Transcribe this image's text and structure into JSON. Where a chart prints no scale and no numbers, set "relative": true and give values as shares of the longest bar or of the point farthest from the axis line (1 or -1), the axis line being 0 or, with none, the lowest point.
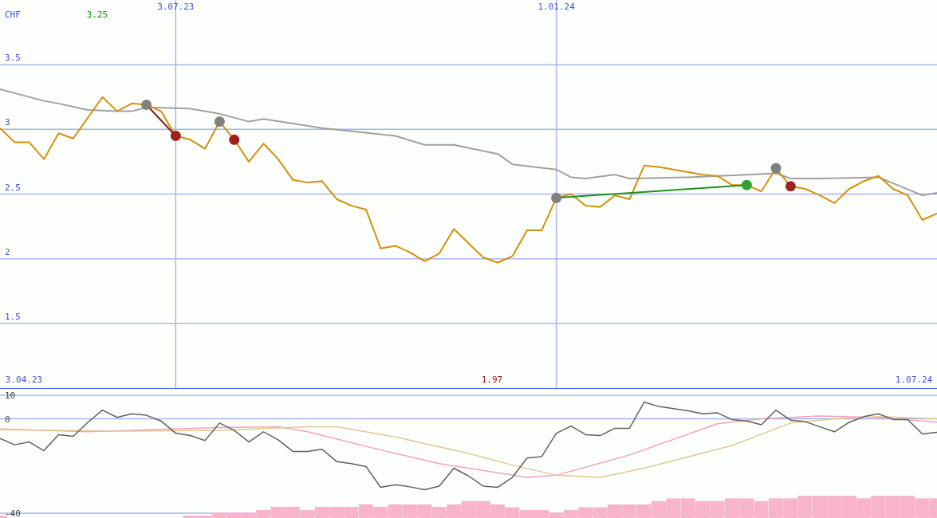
{
  "chart_data": [
    {
      "type": "line",
      "ylabel": "CHF",
      "annotations": [
        "3.25",
        "1.97",
        "3.04.23",
        "1.07.24"
      ],
      "xlim": [
        "2023-04-10",
        "2024-07-01"
      ],
      "xticks": [
        {
          "value": "2023-07-03",
          "label": "3.07.23"
        },
        {
          "value": "2024-01-01",
          "label": "1.01.24"
        }
      ],
      "ylim": [
        1,
        4
      ],
      "yticks": [
        1.5,
        2,
        2.5,
        3,
        3.5
      ],
      "grid": true,
      "legend": false,
      "x": [
        "2023-04-10",
        "2023-04-17",
        "2023-04-24",
        "2023-05-01",
        "2023-05-08",
        "2023-05-15",
        "2023-05-22",
        "2023-05-29",
        "2023-06-05",
        "2023-06-12",
        "2023-06-19",
        "2023-06-26",
        "2023-07-03",
        "2023-07-10",
        "2023-07-17",
        "2023-07-24",
        "2023-07-31",
        "2023-08-07",
        "2023-08-14",
        "2023-08-21",
        "2023-08-28",
        "2023-09-04",
        "2023-09-11",
        "2023-09-18",
        "2023-09-25",
        "2023-10-02",
        "2023-10-09",
        "2023-10-16",
        "2023-10-23",
        "2023-10-30",
        "2023-11-06",
        "2023-11-13",
        "2023-11-20",
        "2023-11-27",
        "2023-12-04",
        "2023-12-11",
        "2023-12-18",
        "2023-12-25",
        "2024-01-01",
        "2024-01-08",
        "2024-01-15",
        "2024-01-22",
        "2024-01-29",
        "2024-02-05",
        "2024-02-12",
        "2024-02-19",
        "2024-02-26",
        "2024-03-04",
        "2024-03-11",
        "2024-03-18",
        "2024-03-25",
        "2024-04-01",
        "2024-04-08",
        "2024-04-15",
        "2024-04-22",
        "2024-04-29",
        "2024-05-06",
        "2024-05-13",
        "2024-05-20",
        "2024-05-27",
        "2024-06-03",
        "2024-06-10",
        "2024-06-17",
        "2024-06-24",
        "2024-07-01"
      ],
      "series": [
        {
          "type": "line",
          "color": "#a0a0a0",
          "x": [
            "2023-04-10",
            "2023-05-01",
            "2023-05-08",
            "2023-05-22",
            "2023-06-05",
            "2023-06-12",
            "2023-06-19",
            "2023-07-10",
            "2023-07-24",
            "2023-08-07",
            "2023-08-14",
            "2023-09-11",
            "2023-10-16",
            "2023-10-30",
            "2023-11-13",
            "2023-12-04",
            "2023-12-11",
            "2024-01-01",
            "2024-01-08",
            "2024-01-15",
            "2024-01-29",
            "2024-02-05",
            "2024-03-04",
            "2024-04-01",
            "2024-04-15",
            "2024-04-22",
            "2024-05-06",
            "2024-06-03",
            "2024-06-24",
            "2024-07-01"
          ],
          "values": [
            3.31,
            3.22,
            3.2,
            3.15,
            3.14,
            3.14,
            3.17,
            3.16,
            3.12,
            3.06,
            3.08,
            3.01,
            2.95,
            2.88,
            2.88,
            2.81,
            2.73,
            2.69,
            2.63,
            2.62,
            2.65,
            2.62,
            2.63,
            2.65,
            2.66,
            2.62,
            2.62,
            2.63,
            2.49,
            2.51
          ]
        },
        {
          "type": "line",
          "color": "#d4900a",
          "values": [
            3.01,
            2.9,
            2.9,
            2.77,
            2.97,
            2.93,
            3.09,
            3.25,
            3.14,
            3.2,
            3.19,
            3.14,
            2.95,
            2.92,
            2.85,
            3.06,
            2.92,
            2.75,
            2.89,
            2.77,
            2.61,
            2.59,
            2.6,
            2.46,
            2.41,
            2.38,
            2.08,
            2.1,
            2.05,
            1.98,
            2.04,
            2.23,
            2.12,
            2.01,
            1.97,
            2.02,
            2.22,
            2.22,
            2.47,
            2.5,
            2.41,
            2.4,
            2.49,
            2.46,
            2.72,
            2.71,
            2.69,
            2.67,
            2.65,
            2.64,
            2.57,
            2.57,
            2.52,
            2.7,
            2.56,
            2.54,
            2.49,
            2.43,
            2.54,
            2.6,
            2.64,
            2.54,
            2.49,
            2.3,
            2.35
          ]
        },
        {
          "type": "line",
          "color": "#8b1a1a",
          "x": [
            "2023-06-19",
            "2023-07-03"
          ],
          "values": [
            3.19,
            2.95
          ]
        },
        {
          "type": "line",
          "color": "#209020",
          "x": [
            "2024-01-01",
            "2024-04-01"
          ],
          "values": [
            2.47,
            2.57
          ]
        },
        {
          "type": "scatter",
          "marker": "circle",
          "color": "#808080",
          "x": [
            "2023-06-19",
            "2023-07-24",
            "2024-01-01",
            "2024-04-15"
          ],
          "values": [
            3.19,
            3.06,
            2.47,
            2.7
          ]
        },
        {
          "type": "scatter",
          "marker": "circle",
          "color": "#a02020",
          "x": [
            "2023-07-03",
            "2023-07-31",
            "2024-04-22"
          ],
          "values": [
            2.95,
            2.92,
            2.56
          ]
        },
        {
          "type": "scatter",
          "marker": "circle",
          "color": "#30a030",
          "x": [
            "2024-04-01"
          ],
          "values": [
            2.57
          ]
        }
      ]
    },
    {
      "type": "line",
      "xlim": [
        "2023-04-10",
        "2024-07-01"
      ],
      "xticks": [
        {
          "value": "2023-07-03",
          "label": null
        },
        {
          "value": "2024-01-01",
          "label": null
        }
      ],
      "ylim": [
        -42,
        13
      ],
      "yticks": [
        -40,
        0,
        10
      ],
      "grid": true,
      "legend": false,
      "tick_labels": "y",
      "x": [
        "2023-04-10",
        "2023-04-17",
        "2023-04-24",
        "2023-05-01",
        "2023-05-08",
        "2023-05-15",
        "2023-05-22",
        "2023-05-29",
        "2023-06-05",
        "2023-06-12",
        "2023-06-19",
        "2023-06-26",
        "2023-07-03",
        "2023-07-10",
        "2023-07-17",
        "2023-07-24",
        "2023-07-31",
        "2023-08-07",
        "2023-08-14",
        "2023-08-21",
        "2023-08-28",
        "2023-09-04",
        "2023-09-11",
        "2023-09-18",
        "2023-09-25",
        "2023-10-02",
        "2023-10-09",
        "2023-10-16",
        "2023-10-23",
        "2023-10-30",
        "2023-11-06",
        "2023-11-13",
        "2023-11-20",
        "2023-11-27",
        "2023-12-04",
        "2023-12-11",
        "2023-12-18",
        "2023-12-25",
        "2024-01-01",
        "2024-01-08",
        "2024-01-15",
        "2024-01-22",
        "2024-01-29",
        "2024-02-05",
        "2024-02-12",
        "2024-02-19",
        "2024-02-26",
        "2024-03-04",
        "2024-03-11",
        "2024-03-18",
        "2024-03-25",
        "2024-04-01",
        "2024-04-08",
        "2024-04-15",
        "2024-04-22",
        "2024-04-29",
        "2024-05-06",
        "2024-05-13",
        "2024-05-20",
        "2024-05-27",
        "2024-06-03",
        "2024-06-10",
        "2024-06-17",
        "2024-06-24",
        "2024-07-01"
      ],
      "series": [
        {
          "color": "#f4a0c0",
          "x": [
            "2023-04-10",
            "2023-05-22",
            "2023-07-24",
            "2023-08-21",
            "2023-09-04",
            "2023-10-09",
            "2023-11-06",
            "2023-11-20",
            "2023-12-18",
            "2024-01-01",
            "2024-02-05",
            "2024-03-18",
            "2024-04-08",
            "2024-05-06",
            "2024-06-03",
            "2024-07-01"
          ],
          "values": [
            -4.3,
            -5.5,
            -3.7,
            -3.4,
            -5.5,
            -13.2,
            -19,
            -20.9,
            -24.8,
            -23.9,
            -15.3,
            -2.1,
            0,
            1.2,
            0.6,
            -1.4
          ]
        },
        {
          "color": "#e0c890",
          "x": [
            "2023-04-10",
            "2023-06-05",
            "2023-07-24",
            "2023-09-04",
            "2023-09-18",
            "2023-10-16",
            "2023-11-20",
            "2023-12-11",
            "2024-01-01",
            "2024-01-22",
            "2024-02-12",
            "2024-03-25",
            "2024-04-22",
            "2024-05-13",
            "2024-06-03",
            "2024-07-01"
          ],
          "values": [
            -4.6,
            -5.2,
            -4.9,
            -3.4,
            -3.4,
            -7.7,
            -14.7,
            -19.6,
            -23.9,
            -24.8,
            -20.9,
            -11.3,
            -1.8,
            0,
            0.9,
            0
          ]
        },
        {
          "color": "#606060",
          "values": [
            -8.3,
            -11,
            -9.8,
            -13.5,
            -6.7,
            -7.4,
            -1.5,
            3.7,
            0.6,
            2.1,
            1.5,
            -0.9,
            -6.1,
            -7.1,
            -9.2,
            -1.8,
            -4.9,
            -9.8,
            -5.5,
            -8.9,
            -13.8,
            -13.8,
            -12.9,
            -18.1,
            -19,
            -20.2,
            -29,
            -27.9,
            -28.8,
            -30,
            -28.5,
            -20.9,
            -24.2,
            -28.5,
            -29,
            -24.8,
            -16.6,
            -16,
            -6.1,
            -3.1,
            -6.7,
            -7.1,
            -4,
            -4,
            7.1,
            5.2,
            4.3,
            3.4,
            2.1,
            2.5,
            -0.3,
            -0.9,
            -2.5,
            3.7,
            -0.6,
            -1.2,
            -3.4,
            -5.5,
            -1.5,
            0.9,
            2.1,
            -0.3,
            -0.3,
            -6.4,
            -5.7
          ]
        }
      ]
    },
    {
      "type": "bar",
      "relative": true,
      "xlim": [
        "2023-04-10",
        "2024-07-01"
      ],
      "tick_labels": false,
      "color": "#f8b4c8",
      "x": [
        "2023-04-10",
        "2023-04-17",
        "2023-04-24",
        "2023-05-01",
        "2023-05-08",
        "2023-05-15",
        "2023-05-22",
        "2023-05-29",
        "2023-06-05",
        "2023-06-12",
        "2023-06-19",
        "2023-06-26",
        "2023-07-03",
        "2023-07-10",
        "2023-07-17",
        "2023-07-24",
        "2023-07-31",
        "2023-08-07",
        "2023-08-14",
        "2023-08-21",
        "2023-08-28",
        "2023-09-04",
        "2023-09-11",
        "2023-09-18",
        "2023-09-25",
        "2023-10-02",
        "2023-10-09",
        "2023-10-16",
        "2023-10-23",
        "2023-10-30",
        "2023-11-06",
        "2023-11-13",
        "2023-11-20",
        "2023-11-27",
        "2023-12-04",
        "2023-12-11",
        "2023-12-18",
        "2023-12-25",
        "2024-01-01",
        "2024-01-08",
        "2024-01-15",
        "2024-01-22",
        "2024-01-29",
        "2024-02-05",
        "2024-02-12",
        "2024-02-19",
        "2024-02-26",
        "2024-03-04",
        "2024-03-11",
        "2024-03-18",
        "2024-03-25",
        "2024-04-01",
        "2024-04-08",
        "2024-04-15",
        "2024-04-22",
        "2024-04-29",
        "2024-05-06",
        "2024-05-13",
        "2024-05-20",
        "2024-05-27",
        "2024-06-03",
        "2024-06-10",
        "2024-06-17",
        "2024-06-24",
        "2024-07-01"
      ],
      "values": [
        0.11,
        0,
        0,
        0,
        0,
        0,
        0,
        0,
        0,
        0,
        0,
        0,
        0,
        0.11,
        0.11,
        0.24,
        0.24,
        0.24,
        0.36,
        0.5,
        0.5,
        0.36,
        0.5,
        0.5,
        0.5,
        0.61,
        0.5,
        0.61,
        0.61,
        0.61,
        0.5,
        0.61,
        0.76,
        0.76,
        0.61,
        0.48,
        0.36,
        0.36,
        0.24,
        0.36,
        0.48,
        0.48,
        0.61,
        0.61,
        0.61,
        0.76,
        0.88,
        0.88,
        0.76,
        0.76,
        0.88,
        0.88,
        0.76,
        0.88,
        0.88,
        1,
        1,
        1,
        1,
        0.88,
        1,
        1,
        1,
        0.88,
        0.88
      ]
    }
  ]
}
